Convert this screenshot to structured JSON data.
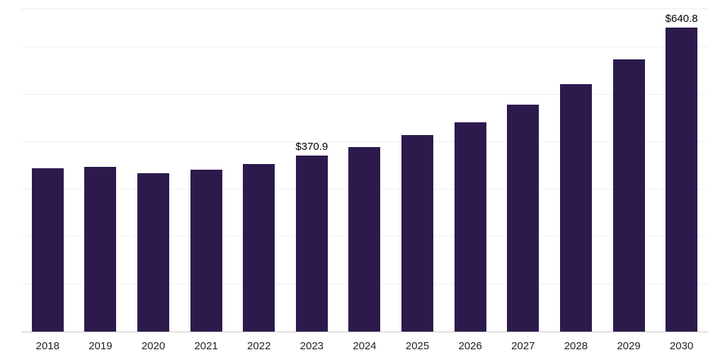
{
  "chart_data": {
    "type": "bar",
    "title": "",
    "xlabel": "",
    "ylabel": "",
    "categories": [
      "2018",
      "2019",
      "2020",
      "2021",
      "2022",
      "2023",
      "2024",
      "2025",
      "2026",
      "2027",
      "2028",
      "2029",
      "2030"
    ],
    "values": [
      345.0,
      348.0,
      333.5,
      341.0,
      353.0,
      370.9,
      389.0,
      414.0,
      442.0,
      479.0,
      522.0,
      574.0,
      640.8
    ],
    "data_labels": [
      "",
      "",
      "",
      "",
      "",
      "$370.9",
      "",
      "",
      "",
      "",
      "",
      "",
      "$640.8"
    ],
    "ylim": [
      0,
      680
    ],
    "grid_step": 100,
    "grid": "horizontal",
    "legend": "none",
    "bar_color": "#2d1a4d",
    "currency_prefix": "$"
  }
}
